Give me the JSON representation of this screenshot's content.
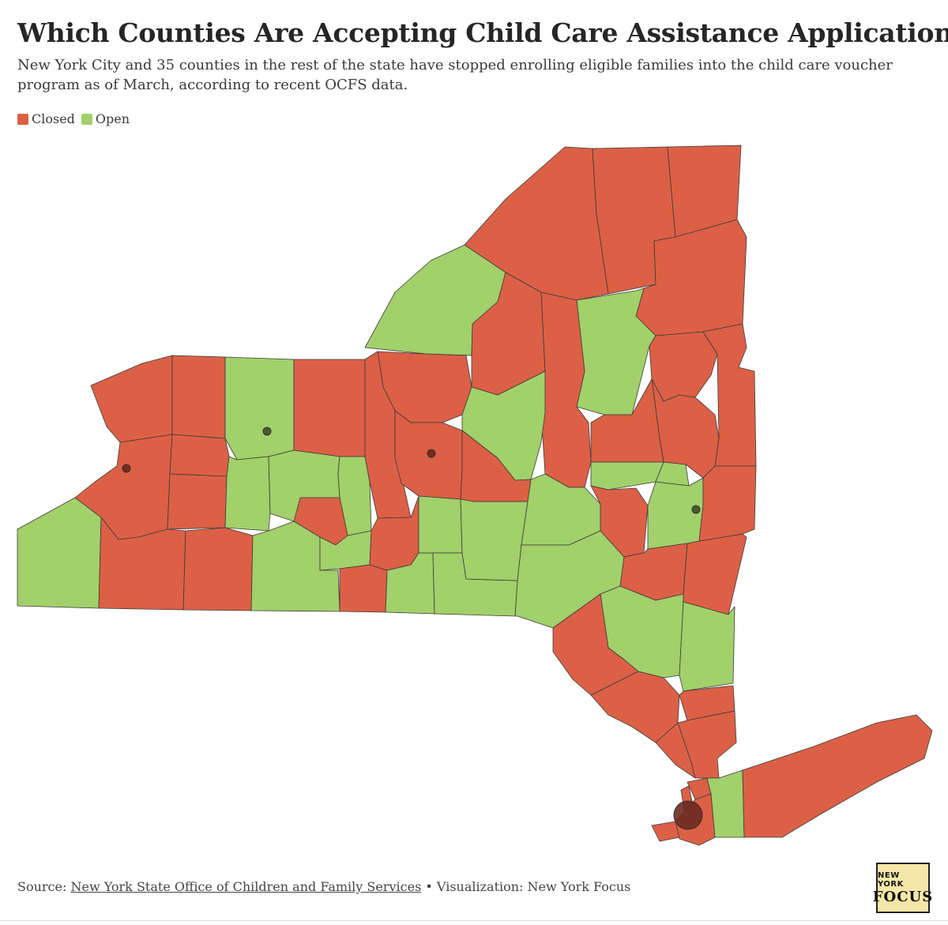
{
  "title": "Which Counties Are Accepting Child Care Assistance Applications?",
  "subtitle": "New York City and 35 counties in the rest of the state have stopped enrolling eligible families into the child care voucher program as of March, according to recent OCFS data.",
  "legend": {
    "closed": {
      "label": "Closed",
      "color": "#dc6046"
    },
    "open": {
      "label": "Open",
      "color": "#a2d06a"
    }
  },
  "colors": {
    "border": "#3a3a3a",
    "dot": "#7a2a1a"
  },
  "footer": {
    "source_prefix": "Source:",
    "source_link": "New York State Office of Children and Family Services",
    "separator": "•",
    "visualization": "Visualization: New York Focus"
  },
  "logo": {
    "line1": "NEW YORK",
    "line2": "FOCUS"
  }
}
